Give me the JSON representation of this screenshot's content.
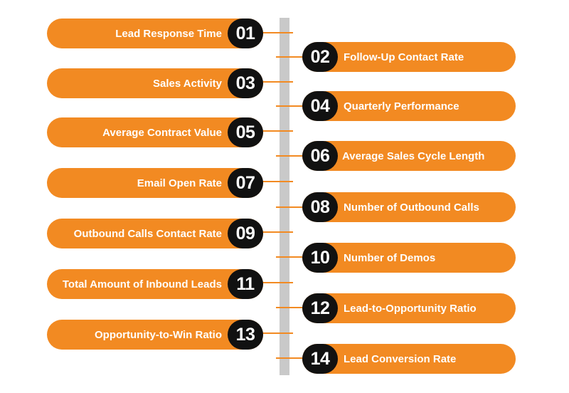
{
  "items": [
    {
      "number": "01",
      "label": "Lead Response Time"
    },
    {
      "number": "02",
      "label": "Follow-Up Contact Rate"
    },
    {
      "number": "03",
      "label": "Sales Activity"
    },
    {
      "number": "04",
      "label": "Quarterly Performance"
    },
    {
      "number": "05",
      "label": "Average Contract Value"
    },
    {
      "number": "06",
      "label": "Average Sales Cycle Length"
    },
    {
      "number": "07",
      "label": "Email Open Rate"
    },
    {
      "number": "08",
      "label": "Number of Outbound Calls"
    },
    {
      "number": "09",
      "label": "Outbound Calls Contact Rate"
    },
    {
      "number": "10",
      "label": "Number of Demos"
    },
    {
      "number": "11",
      "label": "Total Amount of Inbound Leads"
    },
    {
      "number": "12",
      "label": "Lead-to-Opportunity Ratio"
    },
    {
      "number": "13",
      "label": "Opportunity-to-Win Ratio"
    },
    {
      "number": "14",
      "label": "Lead Conversion Rate"
    }
  ],
  "colors": {
    "accent": "#f28a22",
    "badge": "#111111",
    "spine": "#c9c9c9",
    "text": "#ffffff"
  }
}
